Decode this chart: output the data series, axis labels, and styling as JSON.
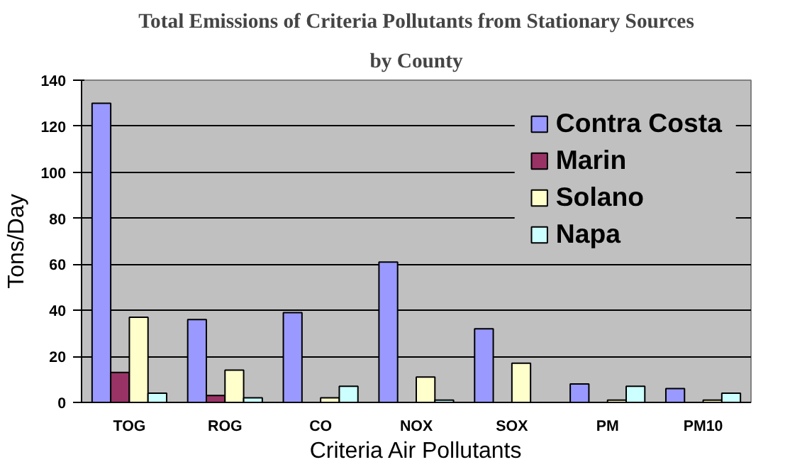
{
  "chart_data": {
    "type": "bar",
    "title": "Total Emissions of Criteria Pollutants from Stationary Sources",
    "subtitle": "by County",
    "xlabel": "Criteria Air Pollutants",
    "ylabel": "Tons/Day",
    "categories": [
      "TOG",
      "ROG",
      "CO",
      "NOX",
      "SOX",
      "PM",
      "PM10"
    ],
    "series": [
      {
        "name": "Contra Costa",
        "color": "#9999ff",
        "values": [
          130,
          36,
          39,
          61,
          32,
          8,
          6
        ]
      },
      {
        "name": "Marin",
        "color": "#993366",
        "values": [
          13,
          3,
          null,
          null,
          null,
          null,
          null
        ]
      },
      {
        "name": "Solano",
        "color": "#ffffcc",
        "values": [
          37,
          14,
          2,
          11,
          17,
          1,
          1
        ]
      },
      {
        "name": "Napa",
        "color": "#ccffff",
        "values": [
          4,
          2,
          7,
          1,
          null,
          7,
          4
        ]
      }
    ],
    "ylim": [
      0,
      140
    ],
    "yticks": [
      0,
      20,
      40,
      60,
      80,
      100,
      120,
      140
    ],
    "grid": "y",
    "legend": "top right"
  }
}
